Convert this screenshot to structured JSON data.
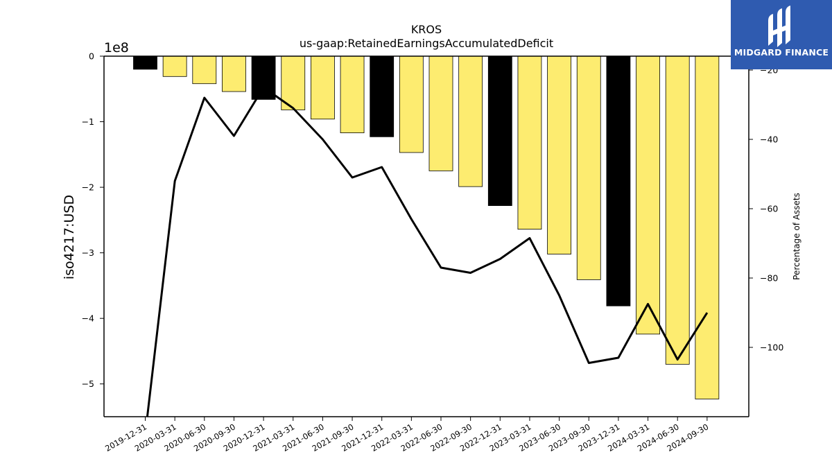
{
  "chart_data": {
    "type": "bar",
    "title": "KROS",
    "subtitle": "us-gaap:RetainedEarningsAccumulatedDeficit",
    "ylabel": "iso4217:USD",
    "y_offset_label": "1e8",
    "y2label": "Percentage of Assets",
    "ylim": [
      -5.5,
      0
    ],
    "y2lim": [
      -120,
      -16
    ],
    "yticks": [
      0,
      -1,
      -2,
      -3,
      -4,
      -5
    ],
    "yticklabels": [
      "0",
      "−1",
      "−2",
      "−3",
      "−4",
      "−5"
    ],
    "y2ticks": [
      -20,
      -40,
      -60,
      -80,
      -100
    ],
    "y2ticklabels": [
      "−20",
      "−40",
      "−60",
      "−80",
      "−100"
    ],
    "categories": [
      "2019-12-31",
      "2020-03-31",
      "2020-06-30",
      "2020-09-30",
      "2020-12-31",
      "2021-03-31",
      "2021-06-30",
      "2021-09-30",
      "2021-12-31",
      "2022-03-31",
      "2022-06-30",
      "2022-09-30",
      "2022-12-31",
      "2023-03-31",
      "2023-06-30",
      "2023-09-30",
      "2023-12-31",
      "2024-03-31",
      "2024-06-30",
      "2024-09-30"
    ],
    "series": [
      {
        "type": "bar",
        "axis": "left",
        "values": [
          -0.2,
          -0.31,
          -0.42,
          -0.54,
          -0.66,
          -0.82,
          -0.96,
          -1.17,
          -1.23,
          -1.47,
          -1.75,
          -1.99,
          -2.28,
          -2.64,
          -3.02,
          -3.41,
          -3.81,
          -4.24,
          -4.7,
          -5.23
        ],
        "colors": [
          "#000000",
          "#fdec70",
          "#fdec70",
          "#fdec70",
          "#000000",
          "#fdec70",
          "#fdec70",
          "#fdec70",
          "#000000",
          "#fdec70",
          "#fdec70",
          "#fdec70",
          "#000000",
          "#fdec70",
          "#fdec70",
          "#fdec70",
          "#000000",
          "#fdec70",
          "#fdec70",
          "#fdec70"
        ]
      },
      {
        "type": "line",
        "axis": "right",
        "color": "#000000",
        "values": [
          -125,
          -52,
          -28,
          -39,
          -25,
          -31,
          -40,
          -51,
          -48,
          -63,
          -77,
          -78.5,
          -74.5,
          -68.5,
          -85,
          -104.5,
          -103,
          -87.5,
          -103.5,
          -90
        ]
      }
    ],
    "grid": false,
    "legend": "none"
  },
  "logo": {
    "text": "MIDGARD FINANCE"
  }
}
